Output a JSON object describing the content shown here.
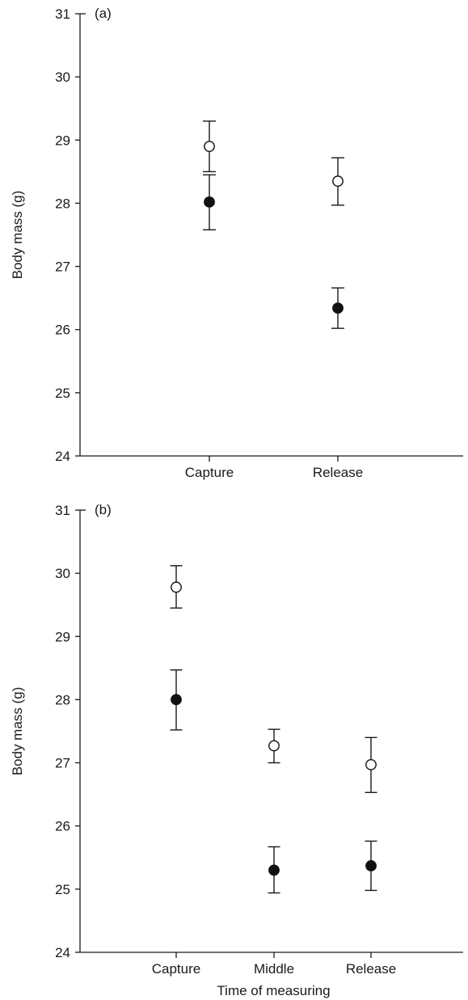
{
  "chart_data": [
    {
      "type": "scatter",
      "panel_label": "(a)",
      "ylabel": "Body mass (g)",
      "xlabel": "",
      "ylim": [
        24,
        31
      ],
      "yticks": [
        24,
        25,
        26,
        27,
        28,
        29,
        30,
        31
      ],
      "categories": [
        "Capture",
        "Release"
      ],
      "grid": false,
      "series": [
        {
          "marker": "open-circle",
          "values": [
            28.9,
            28.35
          ],
          "err_low": [
            28.5,
            27.97
          ],
          "err_high": [
            29.3,
            28.72
          ]
        },
        {
          "marker": "filled-circle",
          "values": [
            28.02,
            26.34
          ],
          "err_low": [
            27.58,
            26.02
          ],
          "err_high": [
            28.45,
            26.66
          ]
        }
      ]
    },
    {
      "type": "scatter",
      "panel_label": "(b)",
      "ylabel": "Body mass (g)",
      "xlabel": "Time of measuring",
      "ylim": [
        24,
        31
      ],
      "yticks": [
        24,
        25,
        26,
        27,
        28,
        29,
        30,
        31
      ],
      "categories": [
        "Capture",
        "Middle",
        "Release"
      ],
      "grid": false,
      "series": [
        {
          "marker": "open-circle",
          "values": [
            29.78,
            27.27,
            26.97
          ],
          "err_low": [
            29.45,
            27.0,
            26.53
          ],
          "err_high": [
            30.12,
            27.53,
            27.4
          ]
        },
        {
          "marker": "filled-circle",
          "values": [
            28.0,
            25.3,
            25.37
          ],
          "err_low": [
            27.52,
            24.94,
            24.98
          ],
          "err_high": [
            28.47,
            25.67,
            25.76
          ]
        }
      ]
    }
  ]
}
